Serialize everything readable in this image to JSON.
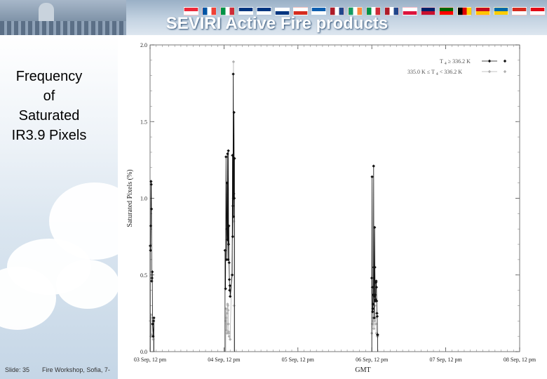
{
  "slide": {
    "title": "SEVIRI Active Fire products",
    "heading_lines": [
      "Frequency",
      "of",
      "Saturated",
      "IR3.9 Pixels"
    ],
    "slide_number": "Slide: 35",
    "footer": "Fire Workshop, Sofia, 7-"
  },
  "header_flag_colors": [
    [
      "#ed2939",
      "#ffffff"
    ],
    [
      "#0055a4",
      "#ffffff",
      "#ef4135"
    ],
    [
      "#009246",
      "#ffffff",
      "#ce2b37"
    ],
    [
      "#003580",
      "#ffffff"
    ],
    [
      "#003580",
      "#ffffff"
    ],
    [
      "#ffffff",
      "#003580"
    ],
    [
      "#ffffff",
      "#d52b1e"
    ],
    [
      "#0d5eaf",
      "#ffffff"
    ],
    [
      "#ae1c28",
      "#ffffff",
      "#21468b"
    ],
    [
      "#169b62",
      "#ffffff",
      "#ff883e"
    ],
    [
      "#009246",
      "#ffffff",
      "#ce2b37"
    ],
    [
      "#ae1c28",
      "#ffffff",
      "#21468b"
    ],
    [
      "#ffffff",
      "#dc143c"
    ],
    [
      "#012169",
      "#c8102e"
    ],
    [
      "#006600",
      "#ff0000"
    ],
    [
      "#000000",
      "#dd0000",
      "#ffce00"
    ],
    [
      "#c60b1e",
      "#ffc400"
    ],
    [
      "#006aa7",
      "#fecc00"
    ],
    [
      "#d52b1e",
      "#ffffff"
    ],
    [
      "#e30a17",
      "#ffffff"
    ],
    [
      "#ffffff",
      "#0039a6",
      "#d52b1e"
    ]
  ],
  "chart_data": {
    "type": "line",
    "xlabel": "GMT",
    "ylabel": "Saturated Pixels (%)",
    "x_range": [
      "03 Sep, 12 pm",
      "08 Sep, 12 pm"
    ],
    "x_ticks": [
      "03 Sep, 12 pm",
      "04 Sep, 12 pm",
      "05 Sep, 12 pm",
      "06 Sep, 12 pm",
      "07 Sep, 12 pm",
      "08 Sep, 12 pm"
    ],
    "ylim": [
      0.0,
      2.0
    ],
    "y_ticks": [
      "0.0",
      "0.5",
      "1.0",
      "1.5",
      "2.0"
    ],
    "y_tick_values": [
      0.0,
      0.5,
      1.0,
      1.5,
      2.0
    ],
    "legend_position": "top-right",
    "series": [
      {
        "name": "T4 ≥ 336.2 K",
        "legend_parts": [
          "T",
          "4",
          "≥ 336.2 K"
        ],
        "color": "#111111",
        "points": [
          [
            "03 Sep 12:03",
            0.69
          ],
          [
            "03 Sep 12:08",
            0.66
          ],
          [
            "03 Sep 12:13",
            0.82
          ],
          [
            "03 Sep 12:18",
            1.11
          ],
          [
            "03 Sep 12:23",
            1.09
          ],
          [
            "03 Sep 12:28",
            0.93
          ],
          [
            "03 Sep 12:33",
            0.46
          ],
          [
            "03 Sep 12:38",
            0.48
          ],
          [
            "03 Sep 12:43",
            0.52
          ],
          [
            "03 Sep 12:48",
            0.18
          ],
          [
            "03 Sep 13:00",
            0.1
          ],
          [
            "03 Sep 13:10",
            0.2
          ],
          [
            "03 Sep 13:15",
            0.22
          ],
          [
            "04 Sep 12:20",
            0.66
          ],
          [
            "04 Sep 12:30",
            0.41
          ],
          [
            "04 Sep 12:40",
            1.27
          ],
          [
            "04 Sep 12:50",
            0.6
          ],
          [
            "04 Sep 12:55",
            0.8
          ],
          [
            "04 Sep 13:00",
            1.1
          ],
          [
            "04 Sep 13:05",
            0.73
          ],
          [
            "04 Sep 13:10",
            1.29
          ],
          [
            "04 Sep 13:15",
            0.81
          ],
          [
            "04 Sep 13:20",
            0.6
          ],
          [
            "04 Sep 13:25",
            1.31
          ],
          [
            "04 Sep 13:30",
            0.7
          ],
          [
            "04 Sep 13:35",
            0.82
          ],
          [
            "04 Sep 13:40",
            0.58
          ],
          [
            "04 Sep 13:45",
            0.47
          ],
          [
            "04 Sep 13:50",
            0.4
          ],
          [
            "04 Sep 13:55",
            0.43
          ],
          [
            "04 Sep 14:00",
            0.36
          ],
          [
            "04 Sep 14:40",
            0.5
          ],
          [
            "04 Sep 14:45",
            1.28
          ],
          [
            "04 Sep 14:50",
            0.75
          ],
          [
            "04 Sep 14:55",
            0.95
          ],
          [
            "04 Sep 15:00",
            1.81
          ],
          [
            "04 Sep 15:05",
            0.88
          ],
          [
            "04 Sep 15:10",
            1.03
          ],
          [
            "04 Sep 15:15",
            1.56
          ],
          [
            "04 Sep 15:20",
            1.0
          ],
          [
            "04 Sep 15:25",
            1.26
          ],
          [
            "06 Sep 12:00",
            0.48
          ],
          [
            "06 Sep 12:05",
            1.14
          ],
          [
            "06 Sep 12:10",
            0.42
          ],
          [
            "06 Sep 12:15",
            0.26
          ],
          [
            "06 Sep 12:20",
            0.28
          ],
          [
            "06 Sep 12:25",
            0.31
          ],
          [
            "06 Sep 12:30",
            0.37
          ],
          [
            "06 Sep 12:35",
            1.21
          ],
          [
            "06 Sep 12:40",
            0.55
          ],
          [
            "06 Sep 12:45",
            0.22
          ],
          [
            "06 Sep 12:50",
            0.36
          ],
          [
            "06 Sep 12:55",
            0.81
          ],
          [
            "06 Sep 13:00",
            0.55
          ],
          [
            "06 Sep 13:05",
            0.37
          ],
          [
            "06 Sep 13:10",
            0.33
          ],
          [
            "06 Sep 13:15",
            0.34
          ],
          [
            "06 Sep 13:20",
            0.45
          ],
          [
            "06 Sep 13:25",
            0.46
          ],
          [
            "06 Sep 13:30",
            0.42
          ],
          [
            "06 Sep 13:35",
            0.33
          ],
          [
            "06 Sep 13:40",
            0.25
          ],
          [
            "06 Sep 13:45",
            0.23
          ],
          [
            "06 Sep 13:50",
            0.11
          ],
          [
            "06 Sep 13:55",
            0.11
          ]
        ]
      },
      {
        "name": "335.0 K ≤ T4 < 336.2 K",
        "legend_parts": [
          "335.0 K ≤ T",
          "4",
          "< 336.2 K"
        ],
        "color": "#b0b0b0",
        "points": [
          [
            "03 Sep 12:03",
            0.2
          ],
          [
            "03 Sep 12:10",
            0.1
          ],
          [
            "03 Sep 12:15",
            0.22
          ],
          [
            "03 Sep 12:20",
            0.24
          ],
          [
            "03 Sep 12:25",
            0.1
          ],
          [
            "03 Sep 12:35",
            0.11
          ],
          [
            "03 Sep 12:45",
            0.1
          ],
          [
            "03 Sep 13:00",
            0.08
          ],
          [
            "04 Sep 12:35",
            0.2
          ],
          [
            "04 Sep 12:40",
            0.28
          ],
          [
            "04 Sep 12:45",
            0.22
          ],
          [
            "04 Sep 12:50",
            0.14
          ],
          [
            "04 Sep 12:55",
            0.18
          ],
          [
            "04 Sep 13:00",
            0.12
          ],
          [
            "04 Sep 13:05",
            0.25
          ],
          [
            "04 Sep 13:10",
            0.31
          ],
          [
            "04 Sep 13:15",
            0.3
          ],
          [
            "04 Sep 13:20",
            0.27
          ],
          [
            "04 Sep 13:25",
            0.18
          ],
          [
            "04 Sep 13:30",
            0.13
          ],
          [
            "04 Sep 13:35",
            0.12
          ],
          [
            "04 Sep 13:40",
            0.1
          ],
          [
            "04 Sep 14:00",
            0.08
          ],
          [
            "04 Sep 15:00",
            1.0
          ],
          [
            "04 Sep 15:05",
            1.89
          ],
          [
            "04 Sep 15:10",
            0.85
          ],
          [
            "04 Sep 15:15",
            0.3
          ],
          [
            "06 Sep 12:00",
            0.12
          ],
          [
            "06 Sep 12:10",
            0.18
          ],
          [
            "06 Sep 12:20",
            0.22
          ],
          [
            "06 Sep 12:25",
            0.28
          ],
          [
            "06 Sep 12:30",
            0.2
          ],
          [
            "06 Sep 12:40",
            0.15
          ],
          [
            "06 Sep 12:50",
            0.2
          ],
          [
            "06 Sep 13:00",
            0.3
          ],
          [
            "06 Sep 13:10",
            0.22
          ],
          [
            "06 Sep 13:20",
            0.18
          ],
          [
            "06 Sep 13:30",
            0.12
          ],
          [
            "06 Sep 13:45",
            0.1
          ],
          [
            "06 Sep 13:55",
            0.1
          ]
        ]
      }
    ]
  }
}
